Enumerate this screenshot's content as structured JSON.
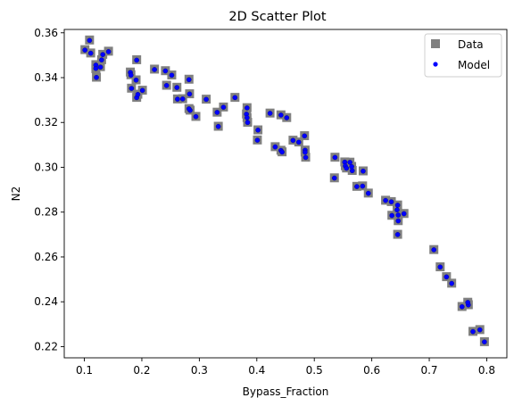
{
  "chart_data": {
    "type": "scatter",
    "title": "2D Scatter Plot",
    "xlabel": "Bypass_Fraction",
    "ylabel": "N2",
    "xlim": [
      0.065,
      0.835
    ],
    "ylim": [
      0.215,
      0.3615
    ],
    "xticks": [
      "0.1",
      "0.2",
      "0.3",
      "0.4",
      "0.5",
      "0.6",
      "0.7",
      "0.8"
    ],
    "yticks": [
      "0.22",
      "0.24",
      "0.26",
      "0.28",
      "0.30",
      "0.32",
      "0.34",
      "0.36"
    ],
    "xtick_values": [
      0.1,
      0.2,
      0.3,
      0.4,
      0.5,
      0.6,
      0.7,
      0.8
    ],
    "ytick_values": [
      0.22,
      0.24,
      0.26,
      0.28,
      0.3,
      0.32,
      0.34,
      0.36
    ],
    "grid": false,
    "legend_position": "top-right",
    "legend": [
      "Data",
      "Model"
    ],
    "colors": {
      "data": "#808080",
      "model": "#0000ff",
      "marker_edge": "#000080"
    },
    "series": [
      {
        "name": "Data",
        "marker": "square",
        "x": [
          0.101,
          0.109,
          0.111,
          0.12,
          0.12,
          0.121,
          0.128,
          0.13,
          0.132,
          0.142,
          0.18,
          0.181,
          0.182,
          0.191,
          0.19,
          0.191,
          0.193,
          0.201,
          0.222,
          0.241,
          0.243,
          0.252,
          0.261,
          0.262,
          0.271,
          0.282,
          0.283,
          0.284,
          0.282,
          0.294,
          0.312,
          0.333,
          0.331,
          0.342,
          0.362,
          0.383,
          0.382,
          0.383,
          0.384,
          0.402,
          0.401,
          0.423,
          0.432,
          0.442,
          0.442,
          0.444,
          0.452,
          0.463,
          0.473,
          0.483,
          0.484,
          0.484,
          0.485,
          0.536,
          0.535,
          0.553,
          0.554,
          0.556,
          0.562,
          0.566,
          0.565,
          0.574,
          0.585,
          0.584,
          0.594,
          0.624,
          0.634,
          0.635,
          0.644,
          0.645,
          0.646,
          0.645,
          0.646,
          0.656,
          0.708,
          0.719,
          0.73,
          0.739,
          0.757,
          0.768,
          0.767,
          0.776,
          0.788,
          0.796
        ],
        "y": [
          0.3525,
          0.3568,
          0.351,
          0.3458,
          0.344,
          0.3402,
          0.3449,
          0.348,
          0.3504,
          0.3518,
          0.3425,
          0.3413,
          0.3353,
          0.348,
          0.339,
          0.3312,
          0.3326,
          0.3344,
          0.3438,
          0.3431,
          0.3366,
          0.3412,
          0.3357,
          0.3305,
          0.3306,
          0.3393,
          0.3328,
          0.3255,
          0.3262,
          0.3227,
          0.3304,
          0.3183,
          0.3246,
          0.3269,
          0.3312,
          0.3266,
          0.3238,
          0.3222,
          0.3201,
          0.3167,
          0.3122,
          0.3242,
          0.3092,
          0.3234,
          0.3076,
          0.3069,
          0.3222,
          0.3121,
          0.3113,
          0.3141,
          0.3077,
          0.3068,
          0.3045,
          0.3045,
          0.2953,
          0.3024,
          0.3007,
          0.2997,
          0.3023,
          0.2986,
          0.3004,
          0.2915,
          0.2984,
          0.2917,
          0.2885,
          0.2853,
          0.2847,
          0.2786,
          0.2811,
          0.2832,
          0.2762,
          0.2701,
          0.2788,
          0.2794,
          0.2633,
          0.2556,
          0.2512,
          0.2483,
          0.2379,
          0.2387,
          0.2398,
          0.2268,
          0.2276,
          0.2222
        ]
      },
      {
        "name": "Model",
        "marker": "dot",
        "x": [
          0.101,
          0.109,
          0.111,
          0.12,
          0.12,
          0.121,
          0.128,
          0.13,
          0.132,
          0.142,
          0.18,
          0.181,
          0.182,
          0.191,
          0.19,
          0.191,
          0.193,
          0.201,
          0.222,
          0.241,
          0.243,
          0.252,
          0.261,
          0.262,
          0.271,
          0.282,
          0.283,
          0.284,
          0.282,
          0.294,
          0.312,
          0.333,
          0.331,
          0.342,
          0.362,
          0.383,
          0.382,
          0.383,
          0.384,
          0.402,
          0.401,
          0.423,
          0.432,
          0.442,
          0.442,
          0.444,
          0.452,
          0.463,
          0.473,
          0.483,
          0.484,
          0.484,
          0.485,
          0.536,
          0.535,
          0.553,
          0.554,
          0.556,
          0.562,
          0.566,
          0.565,
          0.574,
          0.585,
          0.584,
          0.594,
          0.624,
          0.634,
          0.635,
          0.644,
          0.645,
          0.646,
          0.645,
          0.646,
          0.656,
          0.708,
          0.719,
          0.73,
          0.739,
          0.757,
          0.768,
          0.767,
          0.776,
          0.788,
          0.796
        ],
        "y": [
          0.3523,
          0.3566,
          0.3509,
          0.3456,
          0.3441,
          0.3401,
          0.3447,
          0.3479,
          0.3503,
          0.3516,
          0.3423,
          0.3411,
          0.3352,
          0.3478,
          0.3389,
          0.3311,
          0.3325,
          0.3343,
          0.3436,
          0.343,
          0.3365,
          0.3411,
          0.3356,
          0.3304,
          0.3305,
          0.3391,
          0.3327,
          0.3254,
          0.3261,
          0.3226,
          0.3303,
          0.3182,
          0.3245,
          0.3268,
          0.3311,
          0.3265,
          0.3237,
          0.3221,
          0.32,
          0.3166,
          0.3121,
          0.3241,
          0.3091,
          0.3233,
          0.3075,
          0.3068,
          0.3221,
          0.312,
          0.3112,
          0.314,
          0.3076,
          0.3067,
          0.3044,
          0.3044,
          0.2952,
          0.3023,
          0.3006,
          0.2996,
          0.3022,
          0.2985,
          0.3003,
          0.2914,
          0.2983,
          0.2916,
          0.2884,
          0.2852,
          0.2846,
          0.2785,
          0.281,
          0.2831,
          0.2761,
          0.27,
          0.2787,
          0.2793,
          0.2632,
          0.2555,
          0.2511,
          0.2482,
          0.2378,
          0.2386,
          0.2397,
          0.2267,
          0.2275,
          0.2221
        ]
      }
    ]
  }
}
